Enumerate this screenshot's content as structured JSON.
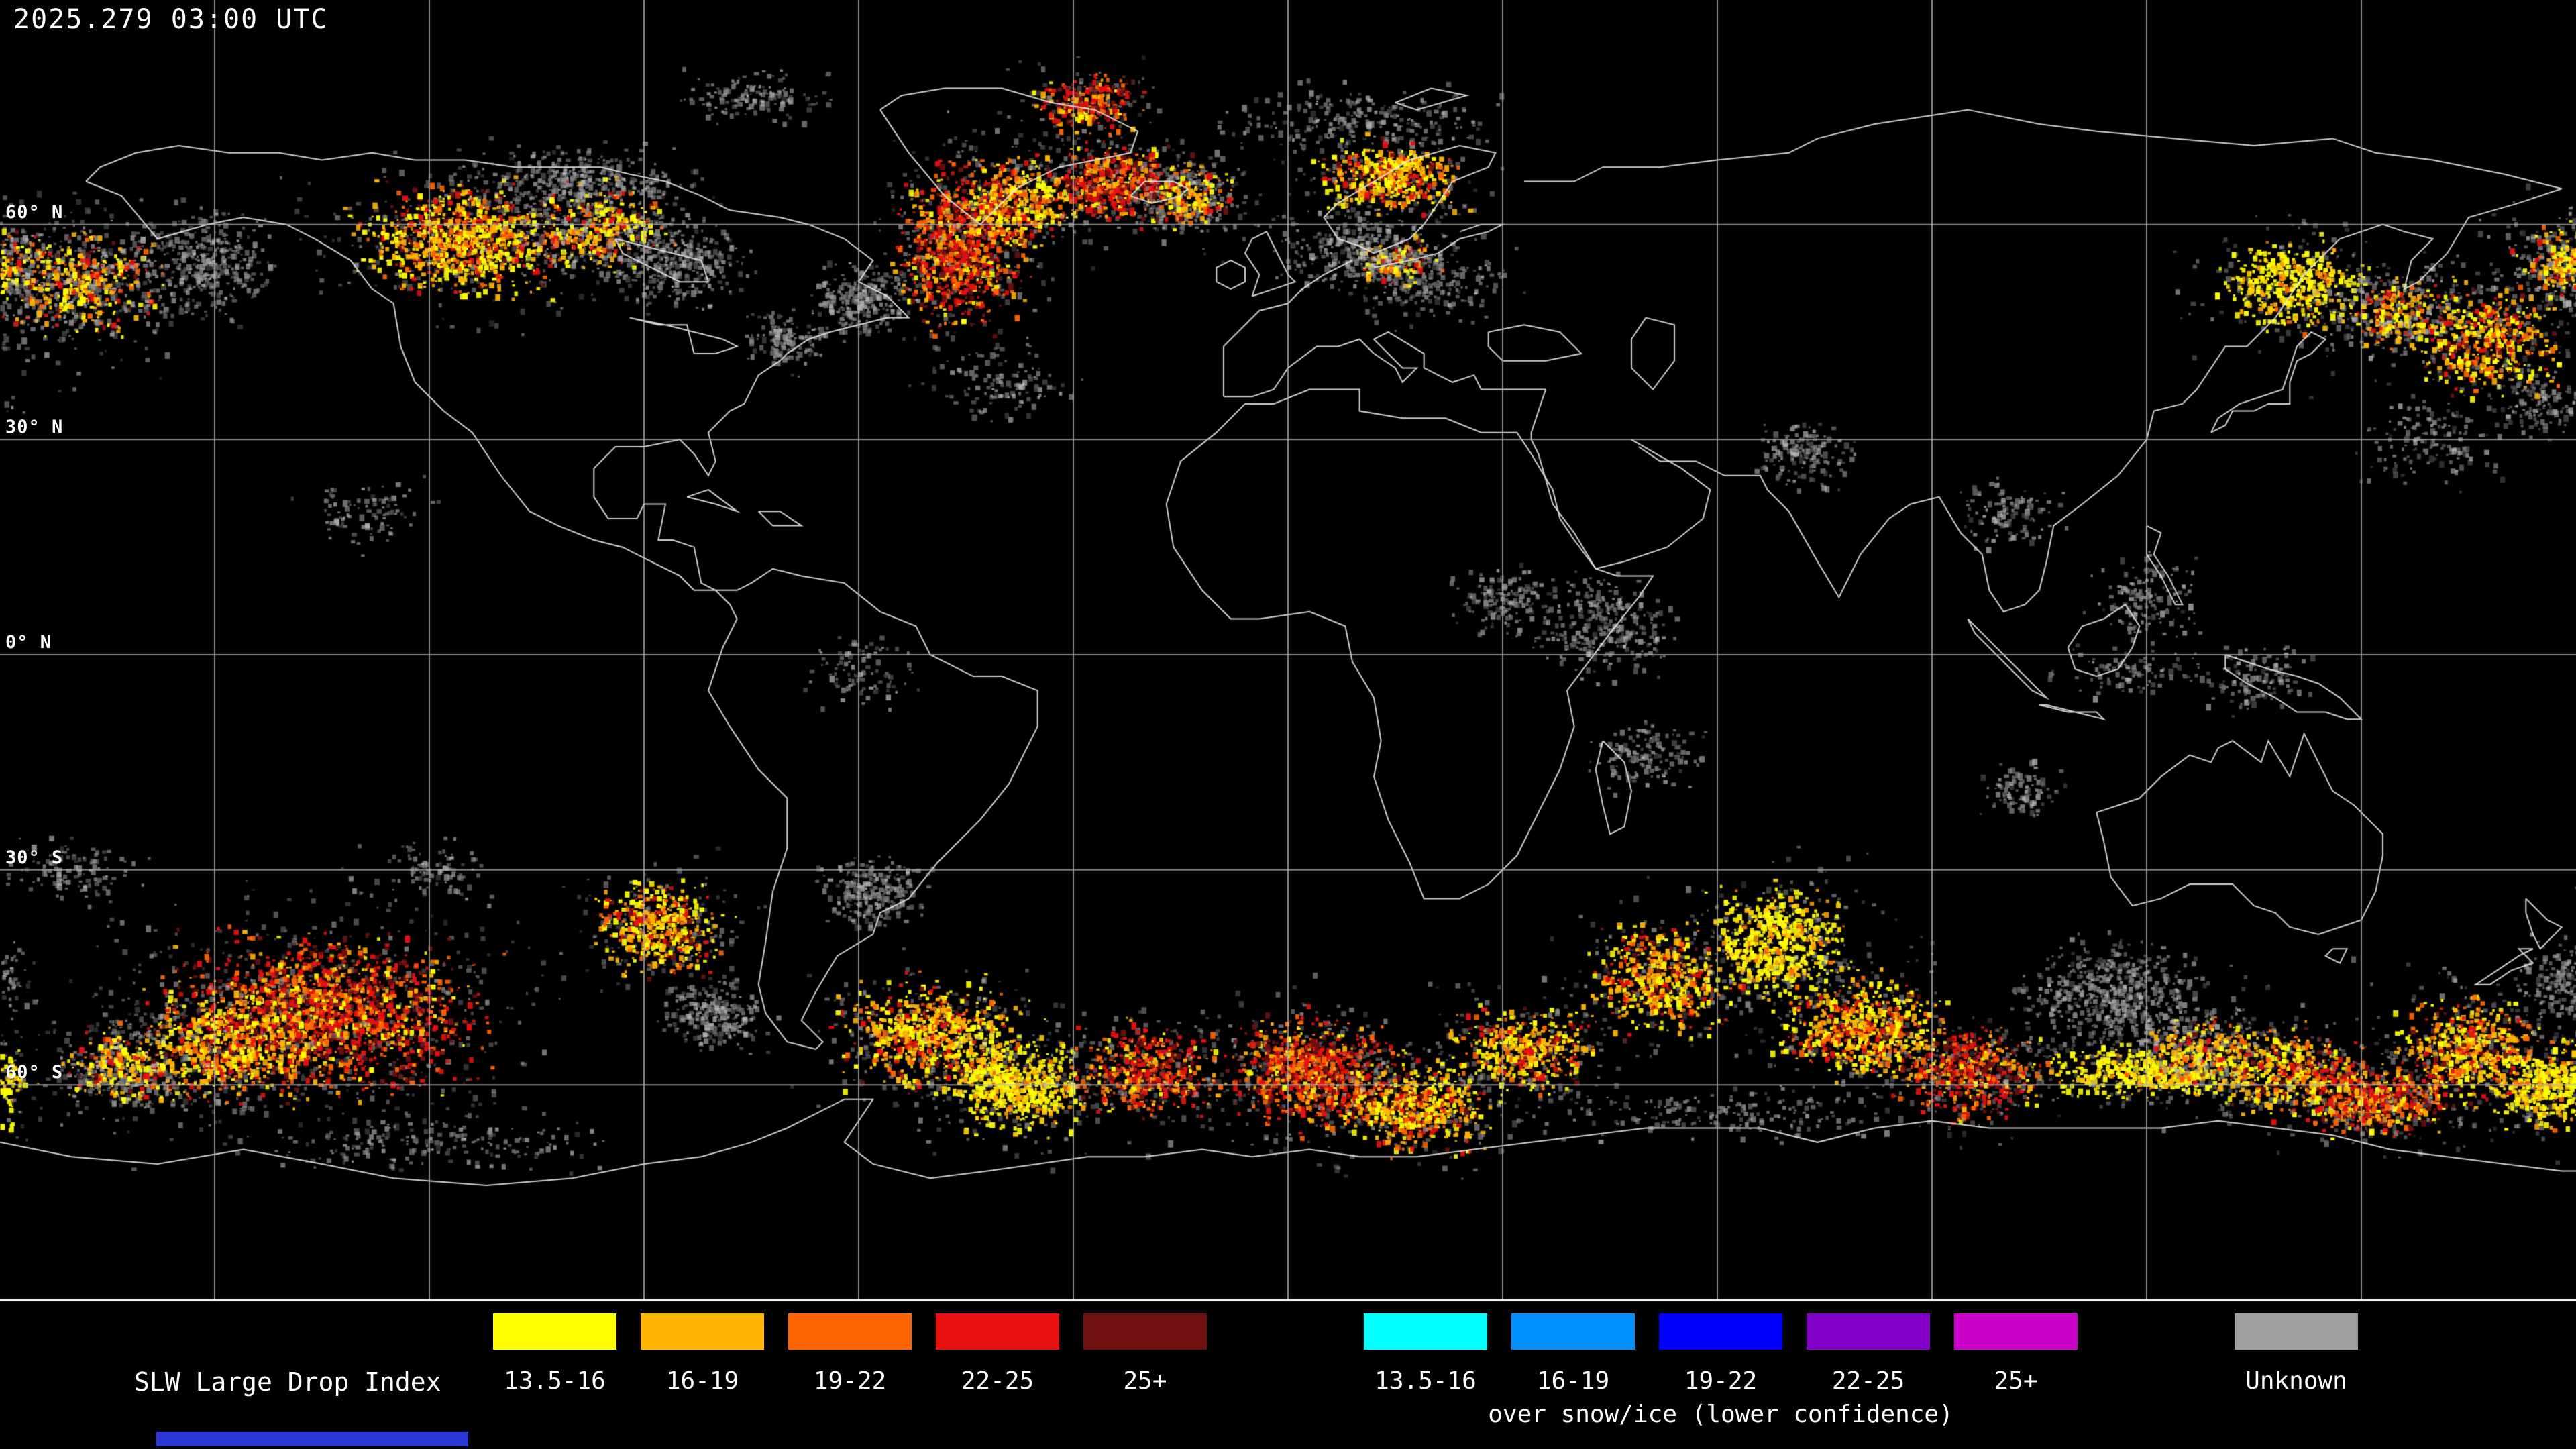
{
  "header": {
    "timestamp": "2025.279 03:00 UTC"
  },
  "map": {
    "background_color": "#000000",
    "coastline_color": "#e8e8e8",
    "grid_color": "#b4b4b4",
    "latitude_labels": [
      {
        "label": "60° N",
        "lat": 60
      },
      {
        "label": "30° N",
        "lat": 30
      },
      {
        "label": "0° N",
        "lat": 0
      },
      {
        "label": "30° S",
        "lat": -30
      },
      {
        "label": "60° S",
        "lat": -60
      }
    ],
    "grid": {
      "lon_step_deg": 30,
      "lat_lines": [
        60,
        30,
        0,
        -30,
        -60
      ]
    }
  },
  "legend": {
    "title": "SLW Large Drop Index",
    "main": {
      "items": [
        {
          "label": "13.5-16",
          "color": "#ffff00"
        },
        {
          "label": "16-19",
          "color": "#ffb400"
        },
        {
          "label": "19-22",
          "color": "#ff6400"
        },
        {
          "label": "22-25",
          "color": "#e81010"
        },
        {
          "label": "25+",
          "color": "#6e1010"
        }
      ]
    },
    "snow_ice": {
      "caption": "over snow/ice (lower confidence)",
      "items": [
        {
          "label": "13.5-16",
          "color": "#00ffff"
        },
        {
          "label": "16-19",
          "color": "#0090ff"
        },
        {
          "label": "19-22",
          "color": "#0000ff"
        },
        {
          "label": "22-25",
          "color": "#8000c8"
        },
        {
          "label": "25+",
          "color": "#c800c8"
        }
      ]
    },
    "unknown": {
      "label": "Unknown",
      "color": "#9e9e9e"
    },
    "timeline_color": "#2b3ad4"
  },
  "overlay_clusters": {
    "format": [
      "lon",
      "lat",
      "lon_spread_deg",
      "lat_spread_deg",
      "num_points",
      "palette"
    ],
    "clusters": [
      [
        -170,
        52,
        12,
        7,
        700,
        "mixed"
      ],
      [
        -152,
        55,
        8,
        6,
        350,
        "gray"
      ],
      [
        -116,
        58,
        11,
        6,
        900,
        "warm"
      ],
      [
        -97,
        60,
        10,
        6,
        500,
        "mixed"
      ],
      [
        -85,
        55,
        8,
        5,
        300,
        "gray"
      ],
      [
        -100,
        66,
        12,
        4,
        300,
        "gray"
      ],
      [
        -75,
        78,
        8,
        3,
        150,
        "gray"
      ],
      [
        -46,
        57,
        7,
        9,
        800,
        "red"
      ],
      [
        -38,
        63,
        6,
        5,
        400,
        "warm"
      ],
      [
        -24,
        66,
        7,
        4,
        450,
        "red"
      ],
      [
        -14,
        64,
        6,
        4,
        300,
        "mixed"
      ],
      [
        -28,
        77,
        6,
        3,
        250,
        "red"
      ],
      [
        10,
        75,
        15,
        4,
        250,
        "gray"
      ],
      [
        14,
        67,
        8,
        4,
        450,
        "warm"
      ],
      [
        15,
        55,
        6,
        4,
        200,
        "mixed"
      ],
      [
        8,
        57,
        8,
        5,
        250,
        "gray"
      ],
      [
        20,
        52,
        9,
        5,
        180,
        "gray"
      ],
      [
        -60,
        50,
        6,
        4,
        250,
        "gray"
      ],
      [
        -70,
        44,
        5,
        4,
        150,
        "gray"
      ],
      [
        -40,
        38,
        8,
        4,
        120,
        "gray"
      ],
      [
        140,
        52,
        8,
        5,
        400,
        "yellow"
      ],
      [
        155,
        48,
        8,
        5,
        350,
        "mixed"
      ],
      [
        168,
        44,
        8,
        6,
        450,
        "warm"
      ],
      [
        178,
        55,
        6,
        5,
        300,
        "mixed"
      ],
      [
        175,
        35,
        6,
        4,
        120,
        "gray"
      ],
      [
        160,
        30,
        8,
        5,
        150,
        "gray"
      ],
      [
        44,
        4,
        8,
        6,
        300,
        "gray"
      ],
      [
        30,
        8,
        6,
        4,
        150,
        "gray"
      ],
      [
        50,
        -14,
        6,
        4,
        150,
        "gray"
      ],
      [
        72,
        28,
        6,
        4,
        150,
        "gray"
      ],
      [
        100,
        20,
        6,
        4,
        120,
        "gray"
      ],
      [
        120,
        8,
        6,
        5,
        150,
        "gray"
      ],
      [
        118,
        -2,
        8,
        3,
        100,
        "gray"
      ],
      [
        102,
        -19,
        5,
        3,
        100,
        "gray"
      ],
      [
        135,
        -3,
        6,
        4,
        120,
        "gray"
      ],
      [
        -60,
        -2,
        6,
        4,
        100,
        "gray"
      ],
      [
        -130,
        20,
        8,
        4,
        100,
        "gray"
      ],
      [
        -170,
        -30,
        8,
        4,
        120,
        "gray"
      ],
      [
        -120,
        -30,
        8,
        4,
        100,
        "gray"
      ],
      [
        -135,
        -50,
        17,
        9,
        1600,
        "red"
      ],
      [
        -150,
        -55,
        10,
        6,
        500,
        "warm"
      ],
      [
        -163,
        -57,
        8,
        5,
        400,
        "mixed"
      ],
      [
        -88,
        -38,
        7,
        5,
        450,
        "warm"
      ],
      [
        -80,
        -50,
        6,
        4,
        250,
        "gray"
      ],
      [
        -58,
        -33,
        6,
        4,
        250,
        "gray"
      ],
      [
        -50,
        -53,
        10,
        6,
        700,
        "warm"
      ],
      [
        -38,
        -60,
        8,
        5,
        500,
        "yellow"
      ],
      [
        -20,
        -58,
        8,
        5,
        450,
        "red"
      ],
      [
        3,
        -58,
        10,
        6,
        800,
        "red"
      ],
      [
        18,
        -63,
        8,
        5,
        500,
        "warm"
      ],
      [
        33,
        -55,
        8,
        5,
        400,
        "warm"
      ],
      [
        52,
        -45,
        8,
        6,
        500,
        "warm"
      ],
      [
        68,
        -40,
        8,
        6,
        550,
        "yellow"
      ],
      [
        80,
        -52,
        9,
        6,
        600,
        "warm"
      ],
      [
        95,
        -58,
        8,
        5,
        450,
        "red"
      ],
      [
        115,
        -47,
        10,
        6,
        600,
        "gray"
      ],
      [
        120,
        -58,
        12,
        3,
        450,
        "yellow"
      ],
      [
        128,
        -55,
        8,
        5,
        350,
        "mixed"
      ],
      [
        140,
        -58,
        8,
        5,
        400,
        "warm"
      ],
      [
        152,
        -62,
        8,
        4,
        500,
        "red"
      ],
      [
        165,
        -55,
        8,
        6,
        550,
        "warm"
      ],
      [
        176,
        -60,
        6,
        5,
        350,
        "yellow"
      ],
      [
        178,
        -45,
        5,
        5,
        200,
        "gray"
      ],
      [
        -120,
        -68,
        20,
        3,
        200,
        "gray"
      ],
      [
        60,
        -64,
        25,
        3,
        200,
        "gray"
      ]
    ]
  }
}
